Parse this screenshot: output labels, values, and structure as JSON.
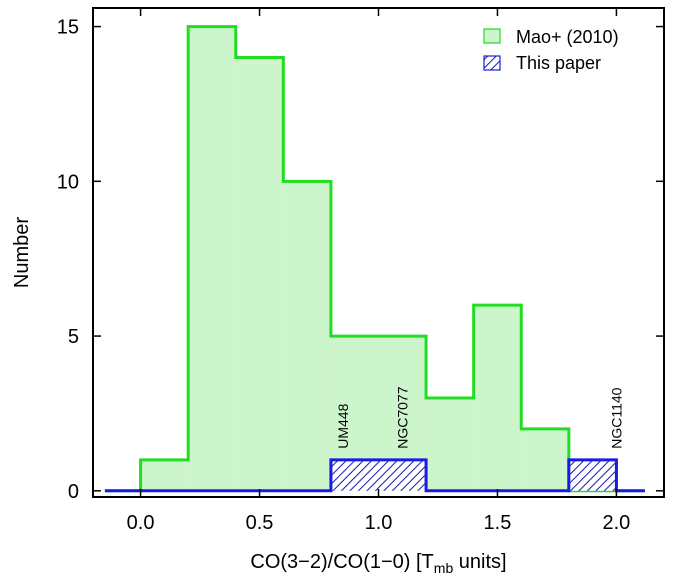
{
  "chart_data": {
    "type": "bar",
    "xlabel": "CO(3−2)/CO(1−0) [T",
    "xlabel_sub": "mb",
    "xlabel_suffix": " units]",
    "ylabel": "Number",
    "xlim": [
      -0.2,
      2.2
    ],
    "ylim": [
      -0.2,
      15.6
    ],
    "xticks": [
      0.0,
      0.5,
      1.0,
      1.5,
      2.0
    ],
    "xtick_labels": [
      "0.0",
      "0.5",
      "1.0",
      "1.5",
      "2.0"
    ],
    "yticks": [
      0,
      5,
      10,
      15
    ],
    "ytick_labels": [
      "0",
      "5",
      "10",
      "15"
    ],
    "bin_edges": [
      0.0,
      0.2,
      0.4,
      0.6,
      0.8,
      1.0,
      1.2,
      1.4,
      1.6,
      1.8,
      2.0
    ],
    "series": [
      {
        "name": "Mao+ (2010)",
        "style": "filled",
        "fill": "#ccf5cc",
        "stroke": "#22dd22",
        "values": [
          1,
          15,
          14,
          10,
          5,
          5,
          3,
          6,
          2,
          0
        ]
      },
      {
        "name": "This paper",
        "style": "hatched",
        "fill": "#1a1ab4",
        "stroke": "#1a1ae6",
        "values": [
          0,
          0,
          0,
          0,
          1,
          1,
          0,
          0,
          0,
          1
        ]
      }
    ],
    "annotations": [
      {
        "text": "UM448",
        "x": 0.85,
        "y": 1.1
      },
      {
        "text": "NGC7077",
        "x": 1.1,
        "y": 1.1
      },
      {
        "text": "NGC1140",
        "x": 2.0,
        "y": 1.1
      }
    ],
    "legend_position": "top-right",
    "grid": false
  }
}
